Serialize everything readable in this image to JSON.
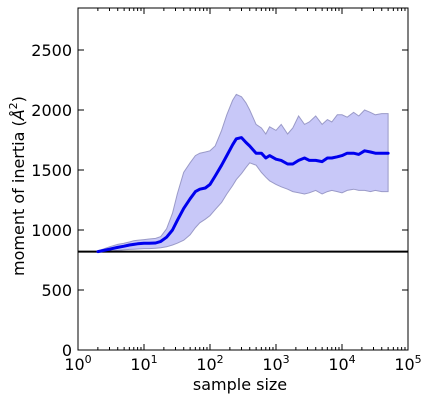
{
  "chart_data": {
    "type": "line",
    "title": "",
    "xlabel": "sample size",
    "ylabel": "moment of inertia (Å²)",
    "ylabel_main": "moment of inertia (",
    "ylabel_unit_base": "Å",
    "ylabel_unit_exp": "2",
    "ylabel_close": ")",
    "xscale": "log",
    "xlim": [
      1,
      100000
    ],
    "ylim": [
      0,
      2850
    ],
    "grid": false,
    "x_ticks": [
      {
        "value": 1,
        "base": "10",
        "exp": "0"
      },
      {
        "value": 10,
        "base": "10",
        "exp": "1"
      },
      {
        "value": 100,
        "base": "10",
        "exp": "2"
      },
      {
        "value": 1000,
        "base": "10",
        "exp": "3"
      },
      {
        "value": 10000,
        "base": "10",
        "exp": "4"
      },
      {
        "value": 100000,
        "base": "10",
        "exp": "5"
      }
    ],
    "y_ticks": [
      0,
      500,
      1000,
      1500,
      2000,
      2500
    ],
    "y_tick_labels": [
      "0",
      "500",
      "1000",
      "1500",
      "2000",
      "2500"
    ],
    "reference_line": {
      "y": 820,
      "color": "#000000"
    },
    "colors": {
      "line": "#0000ee",
      "band_fill": "#c8c8f8",
      "band_edge": "#9a9ac8"
    },
    "series": [
      {
        "x": [
          2,
          3,
          4,
          5,
          6,
          7,
          8,
          10,
          12,
          15,
          18,
          22,
          27,
          32,
          40,
          50,
          60,
          70,
          85,
          100,
          120,
          150,
          180,
          220,
          250,
          300,
          350,
          400,
          500,
          600,
          700,
          800,
          1000,
          1200,
          1500,
          1800,
          2200,
          2700,
          3200,
          4000,
          5000,
          6000,
          7000,
          8500,
          10000,
          12000,
          15000,
          18000,
          22000,
          27000,
          32000,
          40000,
          50000
        ],
        "y": [
          820,
          840,
          855,
          865,
          875,
          880,
          885,
          890,
          890,
          892,
          905,
          940,
          1000,
          1080,
          1180,
          1260,
          1320,
          1340,
          1350,
          1380,
          1450,
          1540,
          1620,
          1710,
          1760,
          1770,
          1730,
          1700,
          1640,
          1640,
          1600,
          1620,
          1590,
          1580,
          1550,
          1550,
          1580,
          1600,
          1580,
          1580,
          1570,
          1600,
          1600,
          1610,
          1620,
          1640,
          1640,
          1630,
          1660,
          1650,
          1640,
          1640,
          1640
        ],
        "lower": [
          820,
          825,
          830,
          835,
          838,
          840,
          842,
          845,
          845,
          848,
          852,
          860,
          875,
          890,
          915,
          960,
          1020,
          1060,
          1090,
          1120,
          1170,
          1230,
          1300,
          1370,
          1420,
          1470,
          1520,
          1560,
          1540,
          1480,
          1440,
          1410,
          1380,
          1360,
          1340,
          1320,
          1310,
          1300,
          1310,
          1330,
          1300,
          1320,
          1330,
          1320,
          1310,
          1330,
          1340,
          1330,
          1330,
          1320,
          1330,
          1320,
          1320
        ],
        "upper": [
          825,
          860,
          880,
          890,
          900,
          910,
          915,
          920,
          925,
          930,
          945,
          1010,
          1140,
          1300,
          1480,
          1560,
          1620,
          1640,
          1650,
          1660,
          1700,
          1830,
          1960,
          2080,
          2130,
          2110,
          2060,
          2000,
          1880,
          1850,
          1800,
          1860,
          1830,
          1880,
          1800,
          1850,
          1950,
          1880,
          1900,
          1950,
          1880,
          1920,
          1900,
          1960,
          1960,
          1940,
          1980,
          1950,
          2000,
          1980,
          1960,
          1970,
          1970
        ]
      }
    ]
  }
}
